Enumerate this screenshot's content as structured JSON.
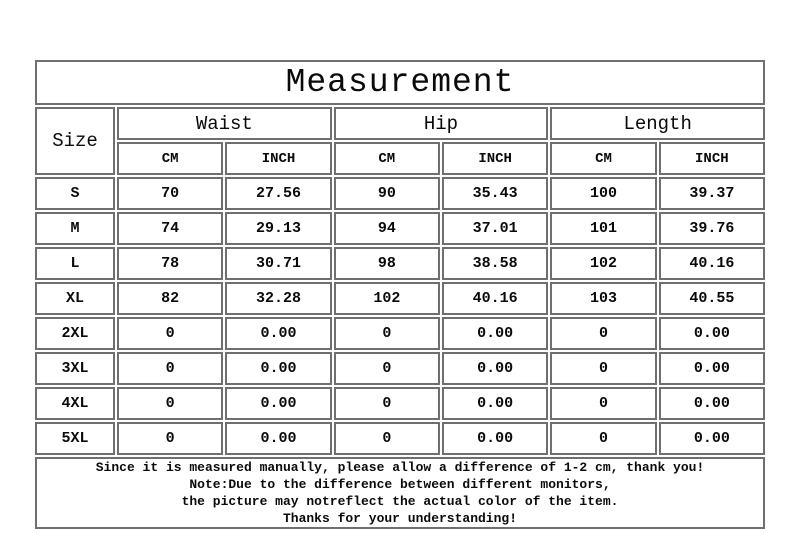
{
  "table": {
    "title": "Measurement",
    "columns": {
      "size": "Size",
      "waist": "Waist",
      "hip": "Hip",
      "length": "Length"
    },
    "units": {
      "cm": "CM",
      "inch": "INCH"
    },
    "rows": [
      [
        "S",
        "70",
        "27.56",
        "90",
        "35.43",
        "100",
        "39.37"
      ],
      [
        "M",
        "74",
        "29.13",
        "94",
        "37.01",
        "101",
        "39.76"
      ],
      [
        "L",
        "78",
        "30.71",
        "98",
        "38.58",
        "102",
        "40.16"
      ],
      [
        "XL",
        "82",
        "32.28",
        "102",
        "40.16",
        "103",
        "40.55"
      ],
      [
        "2XL",
        "0",
        "0.00",
        "0",
        "0.00",
        "0",
        "0.00"
      ],
      [
        "3XL",
        "0",
        "0.00",
        "0",
        "0.00",
        "0",
        "0.00"
      ],
      [
        "4XL",
        "0",
        "0.00",
        "0",
        "0.00",
        "0",
        "0.00"
      ],
      [
        "5XL",
        "0",
        "0.00",
        "0",
        "0.00",
        "0",
        "0.00"
      ]
    ],
    "notes": [
      "Since it is measured manually, please allow a difference of 1-2 cm, thank you!",
      "Note:Due to the difference between different monitors,",
      "the picture may notreflect the actual color of the item.",
      "Thanks for your understanding!"
    ]
  },
  "colors": {
    "border": "#6f6f6f",
    "text": "#0a0a0a",
    "background": "#ffffff"
  }
}
